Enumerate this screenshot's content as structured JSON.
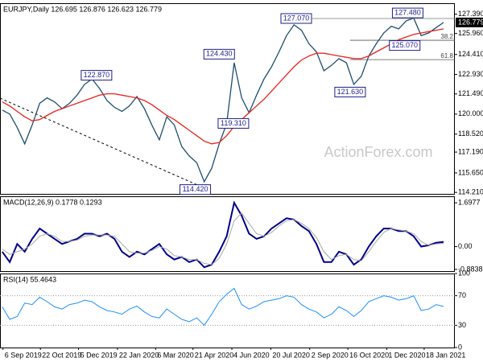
{
  "chart_data": [
    {
      "type": "line",
      "title": "EURJPY,Daily 126.695 126.876 126.623 126.779",
      "xlim": [
        -0.3,
        60.5
      ],
      "ylim": [
        114.1,
        128.2
      ],
      "yticks": [
        {
          "value": 127.39,
          "label": "127.390"
        },
        {
          "value": 125.96,
          "label": "125.960"
        },
        {
          "value": 124.41,
          "label": "124.410"
        },
        {
          "value": 122.93,
          "label": "122.930"
        },
        {
          "value": 121.49,
          "label": "121.490"
        },
        {
          "value": 120,
          "label": "120.000"
        },
        {
          "value": 118.52,
          "label": "118.520"
        },
        {
          "value": 117.19,
          "label": "117.190"
        },
        {
          "value": 115.65,
          "label": "115.650"
        },
        {
          "value": 114.21,
          "label": "114.210"
        }
      ],
      "last_price": {
        "value": 126.779,
        "label": "126.779"
      },
      "series": [
        {
          "color": "#1f4e6e",
          "values": [
            120.3,
            120.0,
            119.0,
            117.8,
            119.2,
            120.8,
            121.2,
            120.9,
            120.4,
            120.8,
            121.4,
            122.2,
            122.6,
            121.9,
            121.0,
            120.5,
            120.2,
            120.6,
            121.3,
            120.4,
            119.2,
            118.1,
            119.8,
            119.2,
            117.6,
            116.9,
            116.4,
            115.0,
            116.0,
            117.8,
            119.3,
            123.8,
            121.2,
            120.1,
            121.4,
            122.6,
            123.5,
            124.6,
            125.8,
            126.6,
            126.2,
            125.2,
            124.6,
            123.2,
            123.6,
            124.1,
            123.8,
            122.2,
            122.8,
            124.3,
            125.2,
            126.0,
            126.5,
            126.3,
            126.9,
            127.1,
            125.8,
            126.0,
            126.4,
            126.779
          ]
        },
        {
          "color": "#e8231e",
          "values": [
            120.9,
            120.6,
            120.2,
            119.8,
            119.5,
            119.6,
            119.9,
            120.2,
            120.4,
            120.6,
            120.8,
            121.0,
            121.2,
            121.4,
            121.5,
            121.5,
            121.4,
            121.3,
            121.2,
            121.0,
            120.7,
            120.3,
            119.9,
            119.6,
            119.2,
            118.8,
            118.4,
            118.0,
            117.8,
            117.9,
            118.4,
            119.1,
            119.6,
            120.1,
            120.6,
            121.1,
            121.7,
            122.3,
            122.9,
            123.5,
            124.0,
            124.3,
            124.5,
            124.5,
            124.4,
            124.3,
            124.2,
            124.1,
            124.1,
            124.3,
            124.6,
            124.9,
            125.2,
            125.5,
            125.7,
            125.9,
            126.0,
            126.1,
            126.2,
            126.3
          ]
        }
      ],
      "annotations": [
        {
          "x": 54.2,
          "value": 127.48,
          "label": "127.480"
        },
        {
          "x": 39.3,
          "value": 127.07,
          "label": "127.070"
        },
        {
          "x": 29,
          "value": 124.43,
          "label": "124.430"
        },
        {
          "x": 12.6,
          "value": 122.87,
          "label": "122.870"
        },
        {
          "x": 30.9,
          "value": 119.31,
          "label": "119.310"
        },
        {
          "x": 25.8,
          "value": 114.42,
          "label": "114.420"
        },
        {
          "x": 46.5,
          "value": 121.63,
          "label": "121.630"
        },
        {
          "x": 53.8,
          "value": 125.07,
          "label": "125.070"
        }
      ],
      "levels": [
        {
          "value": 125.46,
          "label": "38.2"
        },
        {
          "value": 124.03,
          "label": "61.8"
        }
      ],
      "watermark": "ActionForex.com"
    },
    {
      "type": "line",
      "title": "MACD(12,26,9) 0.1778 0.1293",
      "xlim": [
        -0.3,
        60.5
      ],
      "ylim": [
        -0.95,
        1.95
      ],
      "yticks": [
        1.6977,
        {
          "value": 0,
          "label": "0.00"
        },
        -0.8838
      ],
      "series": [
        {
          "color": "#00008b",
          "width": 2,
          "values": [
            -0.2,
            -0.6,
            0.1,
            -0.2,
            0.3,
            0.7,
            0.5,
            0.3,
            0.1,
            0.2,
            0.3,
            0.5,
            0.5,
            0.4,
            0.5,
            0.3,
            -0.2,
            -0.4,
            -0.2,
            -0.3,
            -0.1,
            0.1,
            -0.3,
            -0.5,
            -0.4,
            -0.6,
            -0.5,
            -0.8,
            -0.7,
            -0.2,
            0.4,
            1.7,
            1.2,
            0.5,
            0.3,
            0.4,
            0.7,
            0.9,
            1.1,
            1.05,
            0.8,
            0.6,
            0.1,
            -0.6,
            -0.6,
            -0.2,
            -0.3,
            -0.7,
            -0.5,
            0.0,
            0.4,
            0.7,
            0.7,
            0.6,
            0.6,
            0.4,
            0.0,
            0.05,
            0.15,
            0.1778
          ]
        },
        {
          "color": "#a9a9a9",
          "width": 1,
          "values": [
            -0.1,
            -0.3,
            -0.2,
            -0.1,
            0.1,
            0.4,
            0.5,
            0.4,
            0.2,
            0.2,
            0.25,
            0.4,
            0.45,
            0.45,
            0.45,
            0.4,
            0.1,
            -0.2,
            -0.25,
            -0.25,
            -0.15,
            0.0,
            -0.1,
            -0.35,
            -0.4,
            -0.5,
            -0.5,
            -0.65,
            -0.7,
            -0.45,
            0.1,
            1.0,
            1.3,
            0.9,
            0.5,
            0.4,
            0.55,
            0.8,
            1.0,
            1.05,
            0.9,
            0.7,
            0.35,
            -0.2,
            -0.5,
            -0.35,
            -0.3,
            -0.5,
            -0.55,
            -0.2,
            0.2,
            0.55,
            0.7,
            0.65,
            0.6,
            0.5,
            0.2,
            0.05,
            0.1,
            0.1293
          ]
        }
      ]
    },
    {
      "type": "line",
      "title": "RSI(14) 55.4643",
      "xlim": [
        -0.3,
        60.5
      ],
      "ylim": [
        0,
        100
      ],
      "grid": true,
      "yticks": [
        100,
        70,
        30,
        0
      ],
      "xticks": [
        {
          "value": 0.1,
          "label": "6 Sep 2019"
        },
        {
          "value": 5.1,
          "label": "22 Oct 2019"
        },
        {
          "value": 10.2,
          "label": "5 Dec 2019"
        },
        {
          "value": 15.4,
          "label": "22 Jan 2020"
        },
        {
          "value": 20.5,
          "label": "6 Mar 2020"
        },
        {
          "value": 25.5,
          "label": "21 Apr 2020"
        },
        {
          "value": 30.7,
          "label": "4 Jun 2020"
        },
        {
          "value": 35.9,
          "label": "20 Jul 2020"
        },
        {
          "value": 41.1,
          "label": "2 Sep 2020"
        },
        {
          "value": 46.2,
          "label": "16 Oct 2020"
        },
        {
          "value": 51.4,
          "label": "1 Dec 2020"
        },
        {
          "value": 56.4,
          "label": "18 Jan 2021"
        }
      ],
      "series": [
        {
          "color": "#1e90ff",
          "width": 1,
          "values": [
            55,
            38,
            42,
            60,
            58,
            68,
            62,
            55,
            52,
            58,
            60,
            64,
            62,
            55,
            50,
            48,
            45,
            52,
            56,
            48,
            42,
            40,
            52,
            45,
            38,
            35,
            40,
            30,
            45,
            62,
            72,
            80,
            58,
            52,
            56,
            62,
            64,
            66,
            70,
            68,
            58,
            52,
            48,
            40,
            45,
            55,
            50,
            42,
            50,
            62,
            66,
            70,
            68,
            64,
            66,
            70,
            50,
            52,
            58,
            55.4643
          ]
        }
      ]
    }
  ]
}
